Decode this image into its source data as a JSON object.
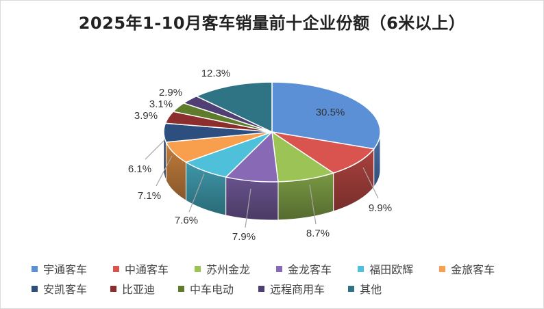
{
  "chart_data": {
    "type": "pie",
    "title": "2025年1-10月客车销量前十企业份额（6米以上）",
    "legend_position": "bottom",
    "slices": [
      {
        "label": "宇通客车",
        "value": 30.5,
        "value_label": "30.5%",
        "color": "#5b8fd6"
      },
      {
        "label": "中通客车",
        "value": 9.9,
        "value_label": "9.9%",
        "color": "#d9534f"
      },
      {
        "label": "苏州金龙",
        "value": 8.7,
        "value_label": "8.7%",
        "color": "#9bc356"
      },
      {
        "label": "金龙客车",
        "value": 7.9,
        "value_label": "7.9%",
        "color": "#8769b5"
      },
      {
        "label": "福田欧辉",
        "value": 7.6,
        "value_label": "7.6%",
        "color": "#4fc0d9"
      },
      {
        "label": "金旅客车",
        "value": 7.1,
        "value_label": "7.1%",
        "color": "#f79f4c"
      },
      {
        "label": "安凯客车",
        "value": 6.1,
        "value_label": "6.1%",
        "color": "#2d4f80"
      },
      {
        "label": "比亚迪",
        "value": 3.9,
        "value_label": "3.9%",
        "color": "#8c2e2e"
      },
      {
        "label": "中车电动",
        "value": 3.1,
        "value_label": "3.1%",
        "color": "#5e7c2b"
      },
      {
        "label": "远程商用车",
        "value": 2.9,
        "value_label": "2.9%",
        "color": "#4f3f73"
      },
      {
        "label": "其他",
        "value": 12.3,
        "value_label": "12.3%",
        "color": "#2f7485"
      }
    ]
  }
}
